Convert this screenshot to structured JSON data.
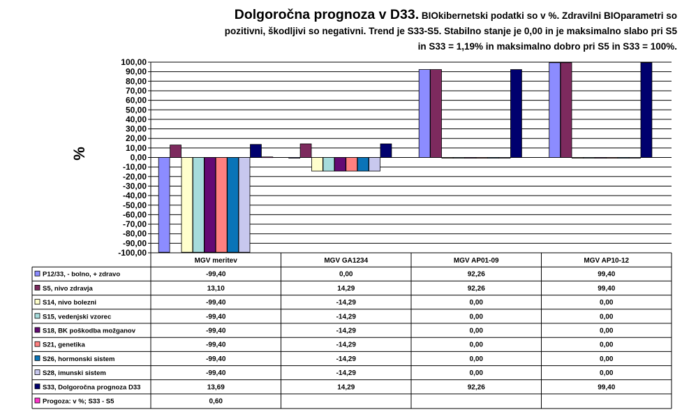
{
  "title": {
    "main": "Dolgoročna prognoza v D33.",
    "line1": "BIOkibernetski podatki so v %. Zdravilni BIOparametri so",
    "line2": "pozitivni, škodljivi so negativni. Trend je S33-S5. Stabilno stanje je 0,00 in je maksimalno slabo pri S5",
    "line3": "in S33 = 1,19% in maksimalno dobro pri S5 in S33 = 100%."
  },
  "chart_data": {
    "type": "bar",
    "title": "Dolgoročna prognoza v D33. BIOkibernetski podatki so v %. Zdravilni BIOparametri so pozitivni, škodljivi so negativni. Trend je S33-S5. Stabilno stanje je 0,00 in je maksimalno slabo pri S5 in S33 = 1,19% in maksimalno dobro pri S5 in S33 = 100%.",
    "ylabel": "%",
    "xlabel": "",
    "ylim": [
      -100,
      100
    ],
    "ytick_step": 10,
    "yticks": [
      "-100,00",
      "-90,00",
      "-80,00",
      "-70,00",
      "-60,00",
      "-50,00",
      "-40,00",
      "-30,00",
      "-20,00",
      "-10,00",
      "0,00",
      "10,00",
      "20,00",
      "30,00",
      "40,00",
      "50,00",
      "60,00",
      "70,00",
      "80,00",
      "90,00",
      "100,00"
    ],
    "grid": true,
    "legend": "data-table",
    "categories": [
      "MGV meritev",
      "MGV GA1234",
      "MGV AP01-09",
      "MGV AP10-12"
    ],
    "series": [
      {
        "name": "P12/33, - bolno, + zdravo",
        "color": "#8c8cff",
        "values": [
          -99.4,
          0.0,
          92.26,
          99.4
        ],
        "labels": [
          "-99,40",
          "0,00",
          "92,26",
          "99,40"
        ]
      },
      {
        "name": "S5, nivo zdravja",
        "color": "#7d2a5e",
        "values": [
          13.1,
          14.29,
          92.26,
          99.4
        ],
        "labels": [
          "13,10",
          "14,29",
          "92,26",
          "99,40"
        ]
      },
      {
        "name": "S14, nivo bolezni",
        "color": "#ffffcc",
        "values": [
          -99.4,
          -14.29,
          0.0,
          0.0
        ],
        "labels": [
          "-99,40",
          "-14,29",
          "0,00",
          "0,00"
        ]
      },
      {
        "name": "S15, vedenjski vzorec",
        "color": "#a6dcdc",
        "values": [
          -99.4,
          -14.29,
          0.0,
          0.0
        ],
        "labels": [
          "-99,40",
          "-14,29",
          "0,00",
          "0,00"
        ]
      },
      {
        "name": "S18, BK poškodba možganov",
        "color": "#640a74",
        "values": [
          -99.4,
          -14.29,
          0.0,
          0.0
        ],
        "labels": [
          "-99,40",
          "-14,29",
          "0,00",
          "0,00"
        ]
      },
      {
        "name": "S21, genetika",
        "color": "#ff8080",
        "values": [
          -99.4,
          -14.29,
          0.0,
          0.0
        ],
        "labels": [
          "-99,40",
          "-14,29",
          "0,00",
          "0,00"
        ]
      },
      {
        "name": "S26, hormonski sistem",
        "color": "#0a74b8",
        "values": [
          -99.4,
          -14.29,
          0.0,
          0.0
        ],
        "labels": [
          "-99,40",
          "-14,29",
          "0,00",
          "0,00"
        ]
      },
      {
        "name": "S28, imunski sistem",
        "color": "#c8c8ee",
        "values": [
          -99.4,
          -14.29,
          0.0,
          0.0
        ],
        "labels": [
          "-99,40",
          "-14,29",
          "0,00",
          "0,00"
        ]
      },
      {
        "name": "S33, Dolgoročna prognoza D33",
        "color": "#00006e",
        "values": [
          13.69,
          14.29,
          92.26,
          99.4
        ],
        "labels": [
          "13,69",
          "14,29",
          "92,26",
          "99,40"
        ]
      },
      {
        "name": "Progoza: v %; S33 - S5",
        "color": "#ff33cc",
        "values": [
          0.6,
          null,
          null,
          null
        ],
        "labels": [
          "0,60",
          "",
          "",
          ""
        ]
      }
    ]
  }
}
